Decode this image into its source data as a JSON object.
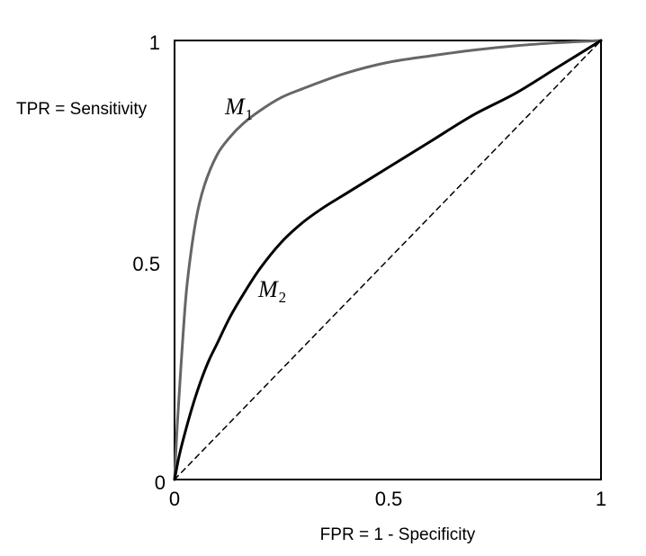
{
  "chart_data": {
    "type": "line",
    "title": "",
    "xlabel": "FPR = 1 - Specificity",
    "ylabel": "TPR = Sensitivity",
    "xlim": [
      0,
      1
    ],
    "ylim": [
      0,
      1
    ],
    "x_ticks": [
      "0",
      "0.5",
      "1"
    ],
    "y_ticks": [
      "0",
      "0.5",
      "1"
    ],
    "grid": false,
    "series": [
      {
        "name": "M1",
        "label_main": "M",
        "label_sub": "1",
        "color": "#666666",
        "style": "solid",
        "x": [
          0,
          0.005,
          0.01,
          0.02,
          0.03,
          0.05,
          0.07,
          0.1,
          0.13,
          0.16,
          0.2,
          0.25,
          0.3,
          0.4,
          0.5,
          0.6,
          0.7,
          0.8,
          0.9,
          1.0
        ],
        "y": [
          0,
          0.1,
          0.18,
          0.33,
          0.45,
          0.59,
          0.67,
          0.74,
          0.78,
          0.81,
          0.84,
          0.87,
          0.89,
          0.925,
          0.95,
          0.965,
          0.978,
          0.988,
          0.995,
          1.0
        ]
      },
      {
        "name": "M2",
        "label_main": "M",
        "label_sub": "2",
        "color": "#000000",
        "style": "solid",
        "x": [
          0,
          0.01,
          0.02,
          0.04,
          0.06,
          0.08,
          0.1,
          0.13,
          0.16,
          0.2,
          0.25,
          0.3,
          0.35,
          0.4,
          0.5,
          0.6,
          0.7,
          0.8,
          0.9,
          1.0
        ],
        "y": [
          0,
          0.05,
          0.09,
          0.16,
          0.22,
          0.27,
          0.31,
          0.37,
          0.42,
          0.48,
          0.54,
          0.585,
          0.62,
          0.65,
          0.71,
          0.77,
          0.83,
          0.88,
          0.94,
          1.0
        ]
      },
      {
        "name": "",
        "color": "#000000",
        "style": "dashed",
        "x": [
          0,
          1
        ],
        "y": [
          0,
          1
        ]
      }
    ]
  }
}
